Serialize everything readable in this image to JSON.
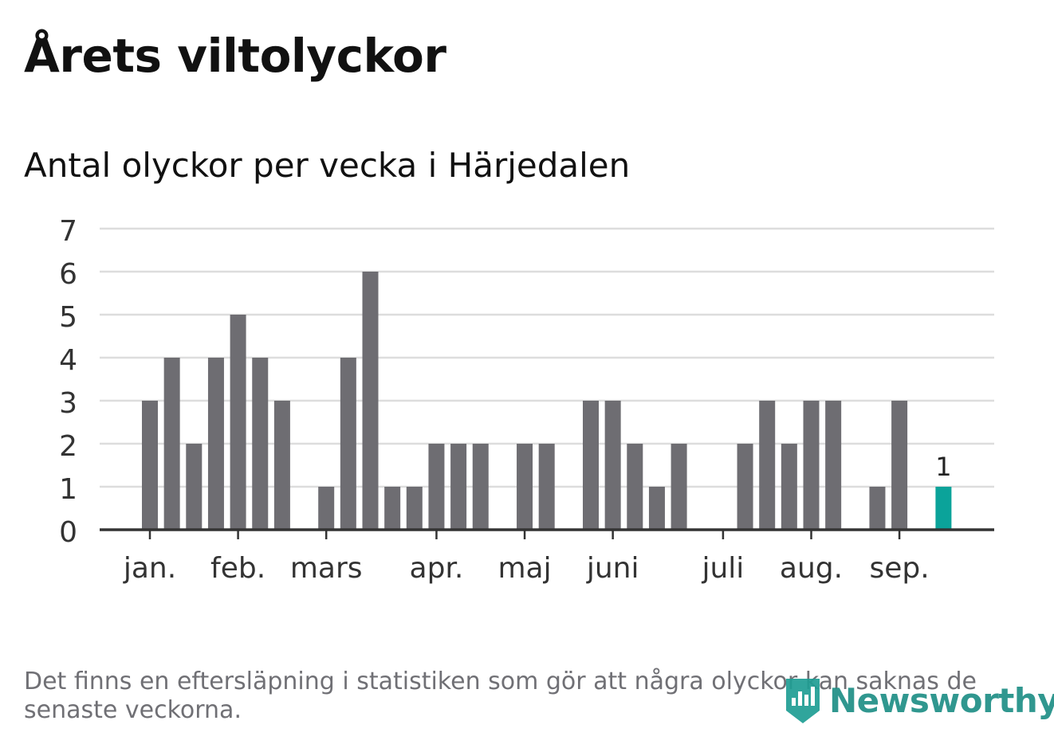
{
  "title": "Årets viltolyckor",
  "subtitle": "Antal olyckor per vecka i Härjedalen",
  "footnote": "Det finns en eftersläpning i statistiken som gör att några olyckor kan saknas de senaste veckorna.",
  "logo": {
    "text": "Newsworthy",
    "icon": "newsworthy-logo-icon",
    "color": "#1f9e94"
  },
  "colors": {
    "bar": "#6e6d72",
    "highlight": "#0ba39a",
    "grid": "#dddddd",
    "axis": "#333333"
  },
  "chart_data": {
    "type": "bar",
    "ylim": [
      0,
      7
    ],
    "yticks": [
      "0",
      "1",
      "2",
      "3",
      "4",
      "5",
      "6",
      "7"
    ],
    "xtick_labels": [
      {
        "label": "jan.",
        "week": 1
      },
      {
        "label": "feb.",
        "week": 5
      },
      {
        "label": "mars",
        "week": 9
      },
      {
        "label": "apr.",
        "week": 14
      },
      {
        "label": "maj",
        "week": 18
      },
      {
        "label": "juni",
        "week": 22
      },
      {
        "label": "juli",
        "week": 27
      },
      {
        "label": "aug.",
        "week": 31
      },
      {
        "label": "sep.",
        "week": 35
      }
    ],
    "weeks": [
      1,
      2,
      3,
      4,
      5,
      6,
      7,
      8,
      9,
      10,
      11,
      12,
      13,
      14,
      15,
      16,
      17,
      18,
      19,
      20,
      21,
      22,
      23,
      24,
      25,
      26,
      27,
      28,
      29,
      30,
      31,
      32,
      33,
      34,
      35,
      36,
      37
    ],
    "values": [
      3,
      4,
      2,
      4,
      5,
      4,
      3,
      0,
      1,
      4,
      6,
      1,
      1,
      2,
      2,
      2,
      0,
      2,
      2,
      0,
      3,
      3,
      2,
      1,
      2,
      0,
      0,
      2,
      3,
      2,
      3,
      3,
      0,
      1,
      3,
      0,
      1
    ],
    "highlight_index": 36,
    "highlight_label": "1",
    "grid": true
  }
}
